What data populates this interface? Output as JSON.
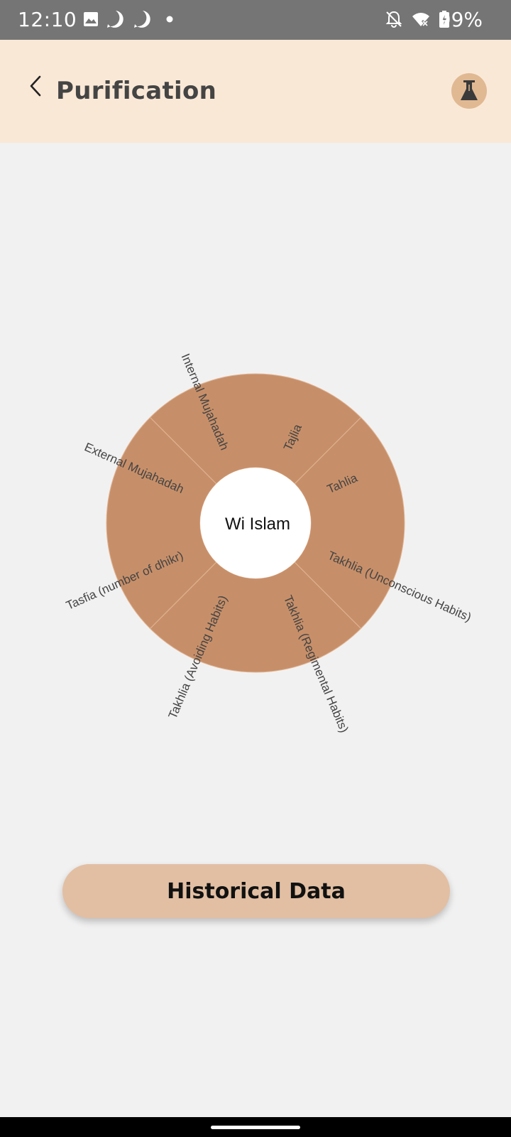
{
  "status_bar": {
    "time": "12:10",
    "battery": "99%",
    "icons": [
      "image-icon",
      "media-play-icon",
      "media-play-icon",
      "dot-icon",
      "notifications-off-icon",
      "wifi-icon",
      "battery-charging-icon"
    ]
  },
  "header": {
    "title": "Purification",
    "back_icon": "chevron-left-icon",
    "action_icon": "flask-icon"
  },
  "chart": {
    "center_label": "Wi Islam",
    "segments": [
      "Tajlia",
      "Tahlia",
      "Takhlia (Unconscious Habits)",
      "Takhlia (Regimental Habits)",
      "Takhlia (Avoiding Habits)",
      "Tasfia (number of dhikr)",
      "External Mujahadah",
      "Internal Mujahadah"
    ],
    "colors": {
      "segment_fill": "#c78f69",
      "divider": "#e0b595",
      "center_fill": "#ffffff"
    }
  },
  "actions": {
    "historical_label": "Historical Data"
  },
  "colors": {
    "header_bg": "#fae8d7",
    "page_bg": "#f2f1f1",
    "button_bg": "#e2bfa3",
    "status_bg": "#757575"
  }
}
